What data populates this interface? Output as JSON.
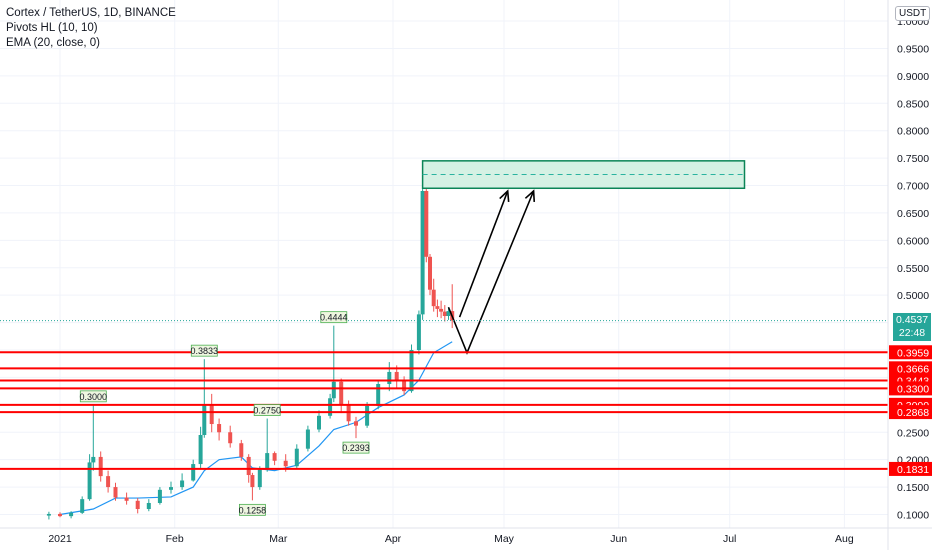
{
  "header": {
    "title": "Cortex / TetherUS, 1D, BINANCE",
    "indicator1": "Pivots HL (10, 10)",
    "indicator2": "EMA (20, close, 0)",
    "currency": "USDT"
  },
  "price_axis": {
    "ticks": [
      "1.0000",
      "0.9500",
      "0.9000",
      "0.8500",
      "0.8000",
      "0.7500",
      "0.7000",
      "0.6500",
      "0.6000",
      "0.5500",
      "0.5000",
      "0.4500",
      "0.4000",
      "0.3500",
      "0.2500",
      "0.2000",
      "0.1500",
      "0.1000"
    ],
    "current_price": "0.4537",
    "countdown": "22:48"
  },
  "time_axis": [
    "2021",
    "Feb",
    "Mar",
    "Apr",
    "May",
    "Jun",
    "Jul",
    "Aug"
  ],
  "colors": {
    "up": "#26a69a",
    "down": "#ef5350",
    "ema": "#2196f3",
    "level": "#ff0000",
    "zone_fill": "#d5f1e4",
    "zone_border": "#0b8457",
    "grid": "#f0f3fa"
  },
  "chart_data": {
    "type": "candlestick",
    "symbol": "Cortex / TetherUS",
    "interval": "1D",
    "exchange": "BINANCE",
    "ylim": [
      0.08,
      1.03
    ],
    "xlim": [
      "2021-01-01",
      "2021-08-31"
    ],
    "candles": [
      {
        "d": "2020-12-29",
        "o": 0.098,
        "h": 0.105,
        "l": 0.091,
        "c": 0.101
      },
      {
        "d": "2021-01-01",
        "o": 0.101,
        "h": 0.104,
        "l": 0.095,
        "c": 0.097
      },
      {
        "d": "2021-01-04",
        "o": 0.097,
        "h": 0.106,
        "l": 0.093,
        "c": 0.103
      },
      {
        "d": "2021-01-07",
        "o": 0.103,
        "h": 0.133,
        "l": 0.101,
        "c": 0.128
      },
      {
        "d": "2021-01-09",
        "o": 0.128,
        "h": 0.21,
        "l": 0.125,
        "c": 0.195
      },
      {
        "d": "2021-01-10",
        "o": 0.195,
        "h": 0.3,
        "l": 0.18,
        "c": 0.205
      },
      {
        "d": "2021-01-12",
        "o": 0.205,
        "h": 0.215,
        "l": 0.16,
        "c": 0.17
      },
      {
        "d": "2021-01-14",
        "o": 0.17,
        "h": 0.18,
        "l": 0.14,
        "c": 0.15
      },
      {
        "d": "2021-01-16",
        "o": 0.15,
        "h": 0.158,
        "l": 0.125,
        "c": 0.131
      },
      {
        "d": "2021-01-19",
        "o": 0.131,
        "h": 0.14,
        "l": 0.118,
        "c": 0.125
      },
      {
        "d": "2021-01-22",
        "o": 0.125,
        "h": 0.13,
        "l": 0.102,
        "c": 0.11
      },
      {
        "d": "2021-01-25",
        "o": 0.11,
        "h": 0.128,
        "l": 0.106,
        "c": 0.121
      },
      {
        "d": "2021-01-28",
        "o": 0.121,
        "h": 0.15,
        "l": 0.118,
        "c": 0.145
      },
      {
        "d": "2021-01-31",
        "o": 0.145,
        "h": 0.16,
        "l": 0.138,
        "c": 0.15
      },
      {
        "d": "2021-02-03",
        "o": 0.15,
        "h": 0.175,
        "l": 0.145,
        "c": 0.162
      },
      {
        "d": "2021-02-06",
        "o": 0.162,
        "h": 0.2,
        "l": 0.16,
        "c": 0.192
      },
      {
        "d": "2021-02-08",
        "o": 0.192,
        "h": 0.26,
        "l": 0.185,
        "c": 0.245
      },
      {
        "d": "2021-02-09",
        "o": 0.245,
        "h": 0.3833,
        "l": 0.24,
        "c": 0.3
      },
      {
        "d": "2021-02-11",
        "o": 0.3,
        "h": 0.32,
        "l": 0.25,
        "c": 0.265
      },
      {
        "d": "2021-02-13",
        "o": 0.265,
        "h": 0.275,
        "l": 0.235,
        "c": 0.25
      },
      {
        "d": "2021-02-16",
        "o": 0.25,
        "h": 0.262,
        "l": 0.222,
        "c": 0.23
      },
      {
        "d": "2021-02-19",
        "o": 0.23,
        "h": 0.236,
        "l": 0.198,
        "c": 0.205
      },
      {
        "d": "2021-02-21",
        "o": 0.205,
        "h": 0.21,
        "l": 0.158,
        "c": 0.172
      },
      {
        "d": "2021-02-22",
        "o": 0.172,
        "h": 0.176,
        "l": 0.1258,
        "c": 0.15
      },
      {
        "d": "2021-02-24",
        "o": 0.15,
        "h": 0.188,
        "l": 0.145,
        "c": 0.182
      },
      {
        "d": "2021-02-26",
        "o": 0.182,
        "h": 0.275,
        "l": 0.178,
        "c": 0.212
      },
      {
        "d": "2021-02-28",
        "o": 0.212,
        "h": 0.215,
        "l": 0.19,
        "c": 0.198
      },
      {
        "d": "2021-03-03",
        "o": 0.198,
        "h": 0.21,
        "l": 0.178,
        "c": 0.188
      },
      {
        "d": "2021-03-06",
        "o": 0.188,
        "h": 0.228,
        "l": 0.185,
        "c": 0.22
      },
      {
        "d": "2021-03-09",
        "o": 0.22,
        "h": 0.262,
        "l": 0.215,
        "c": 0.255
      },
      {
        "d": "2021-03-12",
        "o": 0.255,
        "h": 0.29,
        "l": 0.25,
        "c": 0.28
      },
      {
        "d": "2021-03-15",
        "o": 0.28,
        "h": 0.32,
        "l": 0.275,
        "c": 0.312
      },
      {
        "d": "2021-03-16",
        "o": 0.312,
        "h": 0.4444,
        "l": 0.305,
        "c": 0.342
      },
      {
        "d": "2021-03-18",
        "o": 0.342,
        "h": 0.348,
        "l": 0.285,
        "c": 0.3
      },
      {
        "d": "2021-03-20",
        "o": 0.3,
        "h": 0.308,
        "l": 0.262,
        "c": 0.27
      },
      {
        "d": "2021-03-22",
        "o": 0.27,
        "h": 0.278,
        "l": 0.2393,
        "c": 0.262
      },
      {
        "d": "2021-03-25",
        "o": 0.262,
        "h": 0.305,
        "l": 0.258,
        "c": 0.298
      },
      {
        "d": "2021-03-28",
        "o": 0.298,
        "h": 0.345,
        "l": 0.292,
        "c": 0.338
      },
      {
        "d": "2021-03-31",
        "o": 0.338,
        "h": 0.378,
        "l": 0.325,
        "c": 0.36
      },
      {
        "d": "2021-04-02",
        "o": 0.36,
        "h": 0.372,
        "l": 0.33,
        "c": 0.345
      },
      {
        "d": "2021-04-04",
        "o": 0.345,
        "h": 0.352,
        "l": 0.318,
        "c": 0.325
      },
      {
        "d": "2021-04-06",
        "o": 0.325,
        "h": 0.41,
        "l": 0.322,
        "c": 0.4
      },
      {
        "d": "2021-04-08",
        "o": 0.4,
        "h": 0.472,
        "l": 0.392,
        "c": 0.465
      },
      {
        "d": "2021-04-09",
        "o": 0.465,
        "h": 0.695,
        "l": 0.455,
        "c": 0.69
      },
      {
        "d": "2021-04-10",
        "o": 0.69,
        "h": 0.695,
        "l": 0.56,
        "c": 0.57
      },
      {
        "d": "2021-04-11",
        "o": 0.57,
        "h": 0.575,
        "l": 0.5,
        "c": 0.51
      },
      {
        "d": "2021-04-12",
        "o": 0.51,
        "h": 0.53,
        "l": 0.47,
        "c": 0.48
      },
      {
        "d": "2021-04-13",
        "o": 0.48,
        "h": 0.492,
        "l": 0.46,
        "c": 0.475
      },
      {
        "d": "2021-04-14",
        "o": 0.475,
        "h": 0.49,
        "l": 0.458,
        "c": 0.47
      },
      {
        "d": "2021-04-15",
        "o": 0.47,
        "h": 0.482,
        "l": 0.452,
        "c": 0.462
      },
      {
        "d": "2021-04-16",
        "o": 0.462,
        "h": 0.478,
        "l": 0.455,
        "c": 0.471
      },
      {
        "d": "2021-04-17",
        "o": 0.471,
        "h": 0.52,
        "l": 0.44,
        "c": 0.4537
      }
    ],
    "ema": [
      {
        "d": "2021-01-01",
        "v": 0.1
      },
      {
        "d": "2021-01-10",
        "v": 0.11
      },
      {
        "d": "2021-01-16",
        "v": 0.13
      },
      {
        "d": "2021-01-22",
        "v": 0.13
      },
      {
        "d": "2021-01-31",
        "v": 0.132
      },
      {
        "d": "2021-02-06",
        "v": 0.15
      },
      {
        "d": "2021-02-09",
        "v": 0.18
      },
      {
        "d": "2021-02-13",
        "v": 0.2
      },
      {
        "d": "2021-02-19",
        "v": 0.205
      },
      {
        "d": "2021-02-22",
        "v": 0.185
      },
      {
        "d": "2021-02-28",
        "v": 0.18
      },
      {
        "d": "2021-03-06",
        "v": 0.19
      },
      {
        "d": "2021-03-12",
        "v": 0.225
      },
      {
        "d": "2021-03-16",
        "v": 0.255
      },
      {
        "d": "2021-03-22",
        "v": 0.268
      },
      {
        "d": "2021-03-28",
        "v": 0.295
      },
      {
        "d": "2021-04-04",
        "v": 0.318
      },
      {
        "d": "2021-04-08",
        "v": 0.345
      },
      {
        "d": "2021-04-12",
        "v": 0.395
      },
      {
        "d": "2021-04-17",
        "v": 0.415
      }
    ],
    "pivots": [
      {
        "d": "2021-01-10",
        "price": 0.3,
        "label": "0.3000",
        "kind": "high"
      },
      {
        "d": "2021-02-09",
        "price": 0.3833,
        "label": "0.3833",
        "kind": "high"
      },
      {
        "d": "2021-02-26",
        "price": 0.275,
        "label": "0.2750",
        "kind": "high"
      },
      {
        "d": "2021-02-22",
        "price": 0.1258,
        "label": "0.1258",
        "kind": "low"
      },
      {
        "d": "2021-03-16",
        "price": 0.4444,
        "label": "0.4444",
        "kind": "high"
      },
      {
        "d": "2021-03-22",
        "price": 0.2393,
        "label": "0.2393",
        "kind": "low"
      }
    ],
    "horizontal_levels": [
      {
        "price": 0.3959,
        "label": "0.3959"
      },
      {
        "price": 0.3666,
        "label": "0.3666"
      },
      {
        "price": 0.3443,
        "label": "0.3443"
      },
      {
        "price": 0.33,
        "label": "0.3300"
      },
      {
        "price": 0.3,
        "label": "0.3000"
      },
      {
        "price": 0.2868,
        "label": "0.2868"
      },
      {
        "price": 0.1831,
        "label": "0.1831"
      }
    ],
    "target_zone": {
      "from": "2021-04-09",
      "to": "2021-07-05",
      "low": 0.695,
      "high": 0.745,
      "mid": 0.72
    },
    "projection_arrows": [
      {
        "from": {
          "d": "2021-04-19",
          "p": 0.46
        },
        "to": {
          "d": "2021-05-02",
          "p": 0.69
        }
      },
      {
        "from": {
          "d": "2021-04-21",
          "p": 0.395
        },
        "to": {
          "d": "2021-05-09",
          "p": 0.69
        }
      }
    ],
    "current_price": 0.4537
  }
}
